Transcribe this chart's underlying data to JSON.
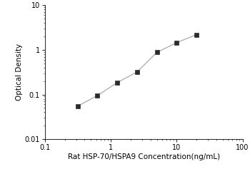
{
  "x_data": [
    0.313,
    0.625,
    1.25,
    2.5,
    5.0,
    10.0,
    20.0
  ],
  "y_data": [
    0.055,
    0.095,
    0.185,
    0.32,
    0.88,
    1.45,
    2.2
  ],
  "xlabel": "Rat HSP-70/HSPA9 Concentration(ng/mL)",
  "ylabel": "Optical Density",
  "xlim": [
    0.1,
    100
  ],
  "ylim": [
    0.01,
    10
  ],
  "xticks": [
    0.1,
    1,
    10,
    100
  ],
  "yticks": [
    0.01,
    0.1,
    1,
    10
  ],
  "marker": "s",
  "marker_color": "#2b2b2b",
  "line_color": "#aaaaaa",
  "marker_size": 4.5,
  "line_width": 0.9,
  "font_size_label": 7.5,
  "font_size_tick": 7,
  "bg_color": "#ffffff"
}
